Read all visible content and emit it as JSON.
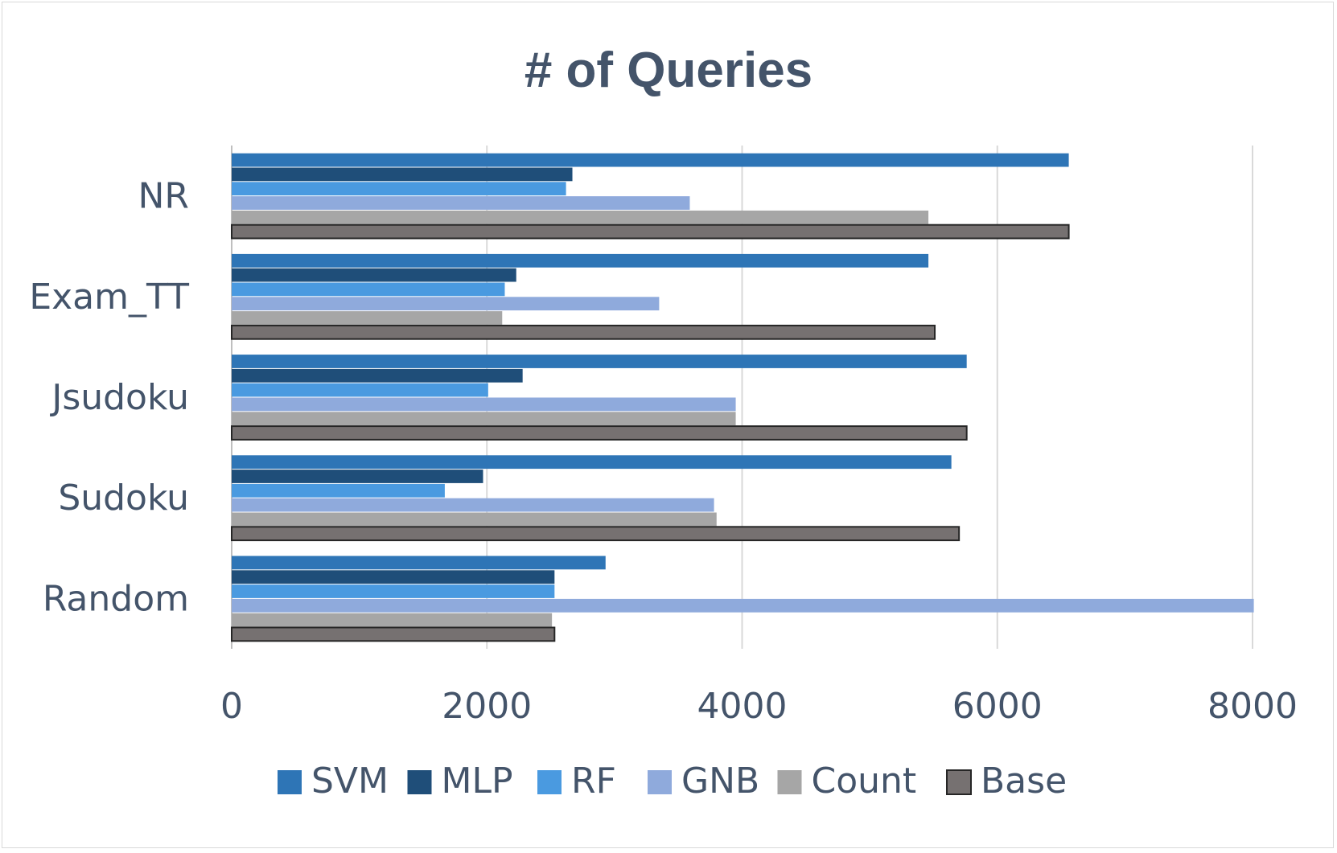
{
  "chart_data": {
    "type": "bar",
    "orientation": "horizontal",
    "title": "# of Queries",
    "xlabel": "",
    "ylabel": "",
    "categories": [
      "NR",
      "Exam_TT",
      "Jsudoku",
      "Sudoku",
      "Random"
    ],
    "xlim": [
      0,
      8000
    ],
    "ticks": [
      0,
      2000,
      4000,
      6000,
      8000
    ],
    "tick_labels": [
      "0",
      "2000",
      "4000",
      "6000",
      "8000"
    ],
    "grid": true,
    "legend_position": "bottom",
    "series": [
      {
        "name": "SVM",
        "color": "#2e75b6",
        "values": [
          6560,
          5460,
          5760,
          5640,
          2930
        ]
      },
      {
        "name": "MLP",
        "color": "#1f4e79",
        "values": [
          2670,
          2230,
          2280,
          1970,
          2530
        ]
      },
      {
        "name": "RF",
        "color": "#4a9ae0",
        "values": [
          2620,
          2140,
          2010,
          1670,
          2530
        ]
      },
      {
        "name": "GNB",
        "color": "#8faadc",
        "values": [
          3590,
          3350,
          3950,
          3780,
          8010
        ]
      },
      {
        "name": "Count",
        "color": "#a6a6a6",
        "values": [
          5460,
          2120,
          3950,
          3800,
          2510
        ]
      },
      {
        "name": "Base",
        "color": "#767171",
        "outline": "#262626",
        "values": [
          6560,
          5510,
          5760,
          5700,
          2530
        ]
      }
    ]
  }
}
